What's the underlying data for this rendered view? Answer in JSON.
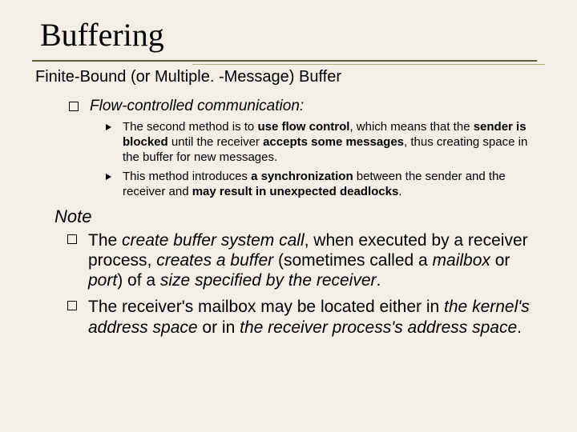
{
  "colors": {
    "background": "#f2f0e6",
    "rule_top": "#5d5a3a",
    "rule_bottom": "#b0ad8c",
    "text": "#000000"
  },
  "typography": {
    "title_font": "Times New Roman",
    "title_size_pt": 40,
    "body_font": "Arial",
    "subtitle_size_pt": 20,
    "flow_label_size_pt": 19,
    "small_size_pt": 15,
    "large_size_pt": 21
  },
  "title": "Buffering",
  "subtitle": "Finite-Bound (or Multiple. -Message) Buffer",
  "flow_label": "Flow-controlled communication:",
  "sub_bullets": [
    {
      "pre": "The second method is to ",
      "b1": "use flow control",
      "mid1": ", which means that the ",
      "b2": "sender is blocked",
      "mid2": " until the receiver ",
      "b3": "accepts some messages",
      "mid3": ", thus creating space in the buffer for new messages."
    },
    {
      "pre": "This method introduces ",
      "b1": "a synchronization",
      "mid1": " between the sender and the receiver and ",
      "b2": "may result in unexpected deadlocks",
      "mid2": "."
    }
  ],
  "note_label": "Note",
  "note_bullets": [
    {
      "t1": "The ",
      "e1": "create buffer system call",
      "t2": ", when executed by a receiver process, ",
      "e2": "creates a buffer",
      "t3": " (sometimes called a ",
      "e3": "mailbox",
      "t4": " or ",
      "e4": "port",
      "t5": ") of a ",
      "e5": "size specified by the receiver",
      "t6": "."
    },
    {
      "t1": "The receiver's mailbox may be located either in ",
      "e1": "the kernel's address space",
      "t2": " or in ",
      "e2": "the receiver process's address space",
      "t3": "."
    }
  ]
}
